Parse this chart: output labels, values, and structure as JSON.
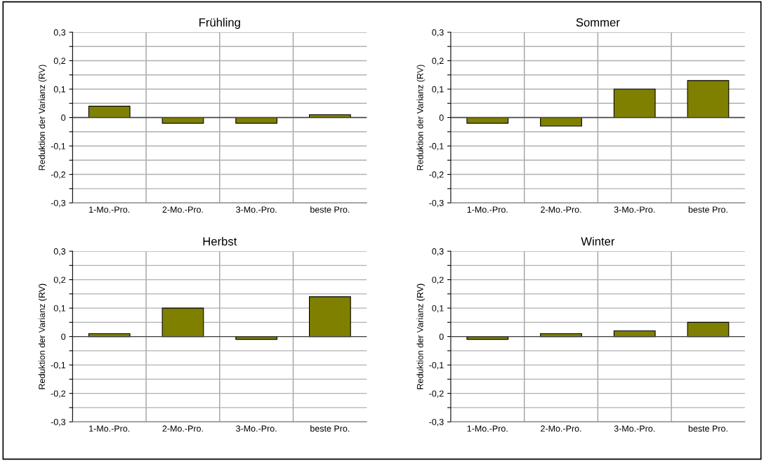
{
  "chart_data": [
    {
      "type": "bar",
      "title": "Frühling",
      "ylabel": "Reduktion der Varianz (RV)",
      "categories": [
        "1-Mo.-Pro.",
        "2-Mo.-Pro.",
        "3-Mo.-Pro.",
        "beste Pro."
      ],
      "values": [
        0.04,
        -0.02,
        -0.02,
        0.01
      ],
      "color": "#808000",
      "ylim": [
        -0.3,
        0.3
      ],
      "yticks": [
        {
          "value": -0.3,
          "label": "-0,3"
        },
        {
          "value": -0.25,
          "label": null
        },
        {
          "value": -0.2,
          "label": "-0,2"
        },
        {
          "value": -0.15,
          "label": null
        },
        {
          "value": -0.1,
          "label": "-0,1"
        },
        {
          "value": -0.05,
          "label": null
        },
        0,
        {
          "value": 0.05,
          "label": null
        },
        {
          "value": 0.1,
          "label": "0,1"
        },
        {
          "value": 0.15,
          "label": null
        },
        {
          "value": 0.2,
          "label": "0,2"
        },
        {
          "value": 0.25,
          "label": null
        },
        {
          "value": 0.3,
          "label": "0,3"
        }
      ],
      "grid": true
    },
    {
      "type": "bar",
      "title": "Sommer",
      "ylabel": "Reduktion der Varianz (RV)",
      "categories": [
        "1-Mo.-Pro.",
        "2-Mo.-Pro.",
        "3-Mo.-Pro.",
        "beste Pro."
      ],
      "values": [
        -0.02,
        -0.03,
        0.1,
        0.13
      ],
      "color": "#808000",
      "ylim": [
        -0.3,
        0.3
      ],
      "yticks": [
        {
          "value": -0.3,
          "label": "-0,3"
        },
        {
          "value": -0.25,
          "label": null
        },
        {
          "value": -0.2,
          "label": "-0,2"
        },
        {
          "value": -0.15,
          "label": null
        },
        {
          "value": -0.1,
          "label": "-0,1"
        },
        {
          "value": -0.05,
          "label": null
        },
        0,
        {
          "value": 0.05,
          "label": null
        },
        {
          "value": 0.1,
          "label": "0,1"
        },
        {
          "value": 0.15,
          "label": null
        },
        {
          "value": 0.2,
          "label": "0,2"
        },
        {
          "value": 0.25,
          "label": null
        },
        {
          "value": 0.3,
          "label": "0,3"
        }
      ],
      "grid": true
    },
    {
      "type": "bar",
      "title": "Herbst",
      "ylabel": "Reduktion der Varianz (RV)",
      "categories": [
        "1-Mo.-Pro.",
        "2-Mo.-Pro.",
        "3-Mo.-Pro.",
        "beste Pro."
      ],
      "values": [
        0.01,
        0.1,
        -0.01,
        0.14
      ],
      "color": "#808000",
      "ylim": [
        -0.3,
        0.3
      ],
      "yticks": [
        {
          "value": -0.3,
          "label": "-0,3"
        },
        {
          "value": -0.25,
          "label": null
        },
        {
          "value": -0.2,
          "label": "-0,2"
        },
        {
          "value": -0.15,
          "label": null
        },
        {
          "value": -0.1,
          "label": "-0,1"
        },
        {
          "value": -0.05,
          "label": null
        },
        0,
        {
          "value": 0.05,
          "label": null
        },
        {
          "value": 0.1,
          "label": "0,1"
        },
        {
          "value": 0.15,
          "label": null
        },
        {
          "value": 0.2,
          "label": "0,2"
        },
        {
          "value": 0.25,
          "label": null
        },
        {
          "value": 0.3,
          "label": "0,3"
        }
      ],
      "grid": true
    },
    {
      "type": "bar",
      "title": "Winter",
      "ylabel": "Reduktion der Varianz (RV)",
      "categories": [
        "1-Mo.-Pro.",
        "2-Mo.-Pro.",
        "3-Mo.-Pro.",
        "beste Pro."
      ],
      "values": [
        -0.01,
        0.01,
        0.02,
        0.05
      ],
      "color": "#808000",
      "ylim": [
        -0.3,
        0.3
      ],
      "yticks": [
        {
          "value": -0.3,
          "label": "-0,3"
        },
        {
          "value": -0.25,
          "label": null
        },
        {
          "value": -0.2,
          "label": "-0,2"
        },
        {
          "value": -0.15,
          "label": null
        },
        {
          "value": -0.1,
          "label": "-0,1"
        },
        {
          "value": -0.05,
          "label": null
        },
        0,
        {
          "value": 0.05,
          "label": null
        },
        {
          "value": 0.1,
          "label": "0,1"
        },
        {
          "value": 0.15,
          "label": null
        },
        {
          "value": 0.2,
          "label": "0,2"
        },
        {
          "value": 0.25,
          "label": null
        },
        {
          "value": 0.3,
          "label": "0,3"
        }
      ],
      "grid": true
    }
  ]
}
